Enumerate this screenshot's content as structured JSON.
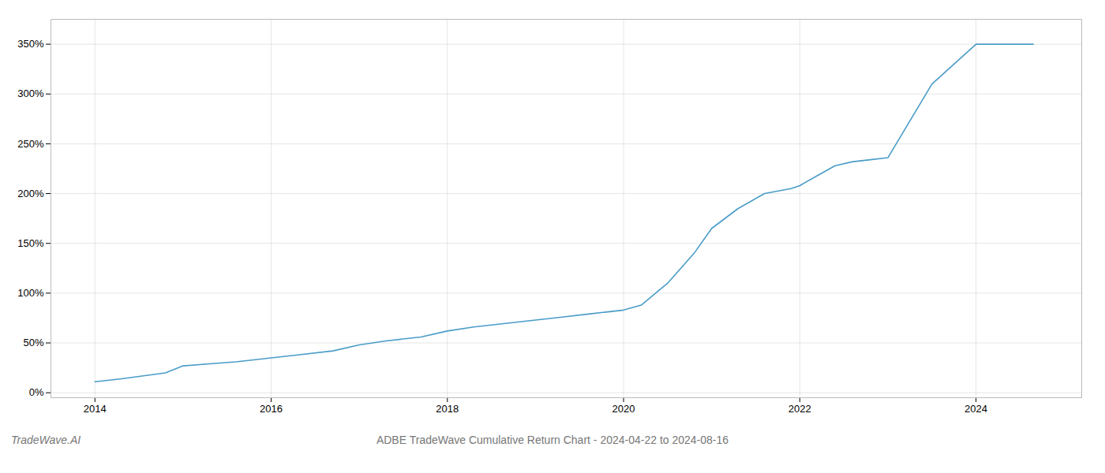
{
  "chart_data": {
    "type": "line",
    "title": "ADBE TradeWave Cumulative Return Chart - 2024-04-22 to 2024-08-16",
    "annotations": [
      "TradeWave.AI"
    ],
    "color": "#4a9cc8",
    "x": [
      2014.0,
      2014.3,
      2014.8,
      2015.0,
      2015.3,
      2015.6,
      2016.0,
      2016.3,
      2016.7,
      2017.0,
      2017.3,
      2017.7,
      2018.0,
      2018.3,
      2018.7,
      2019.0,
      2019.3,
      2019.6,
      2019.8,
      2020.0,
      2020.2,
      2020.5,
      2020.8,
      2021.0,
      2021.3,
      2021.6,
      2021.9,
      2022.0,
      2022.2,
      2022.4,
      2022.6,
      2022.8,
      2023.0,
      2023.5,
      2024.0,
      2024.5,
      2024.65
    ],
    "values": [
      11,
      14,
      20,
      27,
      29,
      31,
      35,
      38,
      42,
      48,
      52,
      56,
      62,
      66,
      70,
      73,
      76,
      79,
      81,
      83,
      88,
      110,
      140,
      165,
      185,
      200,
      205,
      208,
      218,
      228,
      232,
      234,
      236,
      310,
      350,
      350,
      350
    ],
    "xlim": [
      2013.5,
      2025.2
    ],
    "ylim": [
      -5,
      375
    ],
    "xticks": [
      2014,
      2016,
      2018,
      2020,
      2022,
      2024
    ],
    "yticks": [
      {
        "value": 0,
        "label": "0%"
      },
      {
        "value": 50,
        "label": "50%"
      },
      {
        "value": 100,
        "label": "100%"
      },
      {
        "value": 150,
        "label": "150%"
      },
      {
        "value": 200,
        "label": "200%"
      },
      {
        "value": 250,
        "label": "250%"
      },
      {
        "value": 300,
        "label": "300%"
      },
      {
        "value": 350,
        "label": "350%"
      }
    ],
    "grid": true
  }
}
